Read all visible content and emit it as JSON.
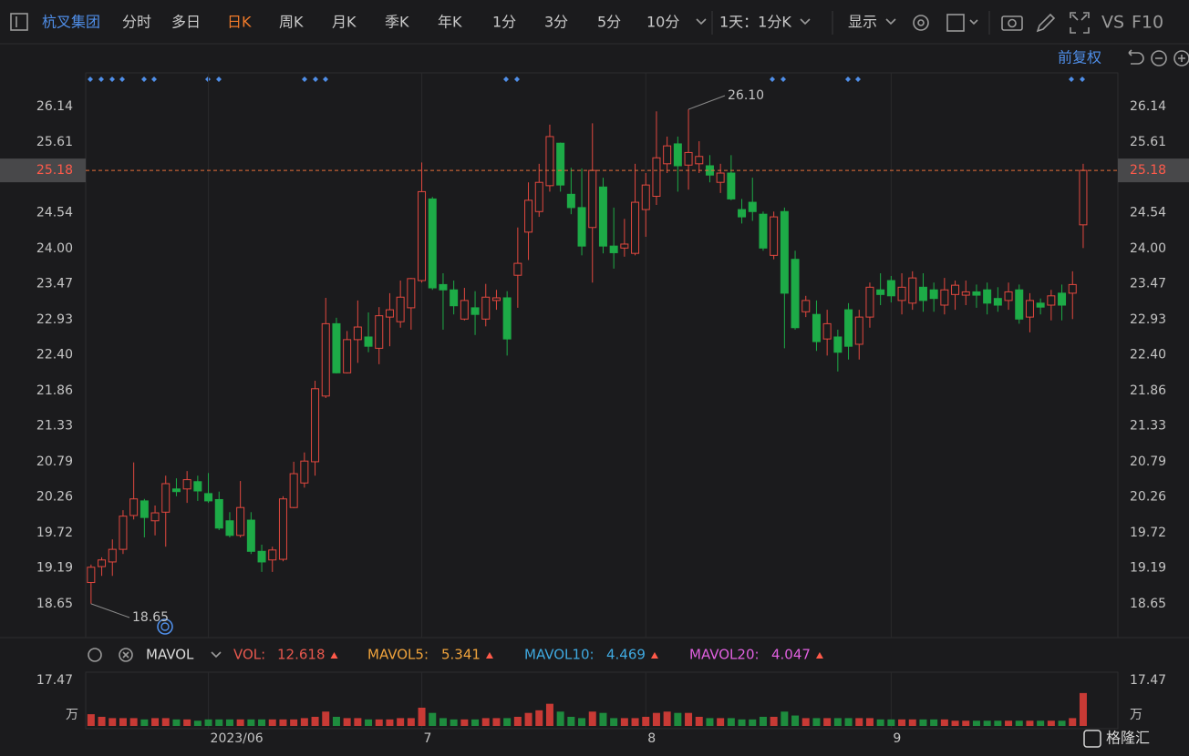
{
  "toolbar": {
    "stock_name": "杭叉集团",
    "periods": [
      "分时",
      "多日",
      "日K",
      "周K",
      "月K",
      "季K",
      "年K",
      "1分",
      "3分",
      "5分",
      "10分"
    ],
    "interval": "1天：1分K",
    "display": "显示",
    "vs": "VS",
    "f10": "F10",
    "adjust": "前复权"
  },
  "watermark": "格隆汇",
  "chart_data": [
    {
      "type": "candlestick",
      "categories": [
        null,
        null,
        null,
        null,
        null,
        null,
        null,
        null,
        null,
        null,
        null,
        "2023/06",
        null,
        null,
        null,
        null,
        null,
        null,
        null,
        null,
        null,
        null,
        null,
        null,
        null,
        null,
        null,
        null,
        null,
        null,
        null,
        "7",
        null,
        null,
        null,
        null,
        null,
        null,
        null,
        null,
        null,
        null,
        null,
        null,
        null,
        null,
        null,
        null,
        null,
        null,
        null,
        null,
        "8",
        null,
        null,
        null,
        null,
        null,
        null,
        null,
        null,
        null,
        null,
        null,
        null,
        null,
        null,
        null,
        null,
        null,
        null,
        null,
        null,
        null,
        null,
        "9",
        null,
        null,
        null,
        null,
        null,
        null,
        null,
        null,
        null,
        null,
        null,
        null,
        null,
        null,
        null,
        null,
        null,
        null
      ],
      "open": [
        18.97,
        19.21,
        19.28,
        19.47,
        19.98,
        20.2,
        19.9,
        20.03,
        20.38,
        20.38,
        20.49,
        20.31,
        20.22,
        19.9,
        19.68,
        19.91,
        19.44,
        19.31,
        19.32,
        20.1,
        20.47,
        20.79,
        21.78,
        22.87,
        22.13,
        22.63,
        22.67,
        22.5,
        22.97,
        22.9,
        23.11,
        23.52,
        24.75,
        23.46,
        23.38,
        22.94,
        23.11,
        22.94,
        23.22,
        23.26,
        23.6,
        24.25,
        24.56,
        24.95,
        25.59,
        24.82,
        24.62,
        24.32,
        24.93,
        24.04,
        24.01,
        23.93,
        24.59,
        24.79,
        25.28,
        25.58,
        25.26,
        25.28,
        25.25,
        25.0,
        25.14,
        24.59,
        24.7,
        24.52,
        23.9,
        24.56,
        23.84,
        23.05,
        23.01,
        22.64,
        22.67,
        23.08,
        22.56,
        22.97,
        23.38,
        23.52,
        23.22,
        23.18,
        23.42,
        23.38,
        23.15,
        23.31,
        23.3,
        23.35,
        23.38,
        23.25,
        23.22,
        23.38,
        22.97,
        23.18,
        23.15,
        23.33,
        23.33,
        24.36
      ],
      "high": [
        19.24,
        19.35,
        19.62,
        20.06,
        20.78,
        20.23,
        20.13,
        20.58,
        20.54,
        20.65,
        20.58,
        20.62,
        20.34,
        20.03,
        20.5,
        20.03,
        19.54,
        19.51,
        20.27,
        20.79,
        20.93,
        22.01,
        23.26,
        22.96,
        22.76,
        23.22,
        23.04,
        23.12,
        23.33,
        23.52,
        23.56,
        25.3,
        24.78,
        23.63,
        23.52,
        23.41,
        23.36,
        23.47,
        23.38,
        23.36,
        24.32,
        25.0,
        25.28,
        25.87,
        25.6,
        25.22,
        25.21,
        25.89,
        25.07,
        24.62,
        24.45,
        25.28,
        25.14,
        26.07,
        25.69,
        25.69,
        26.1,
        25.62,
        25.41,
        25.28,
        25.41,
        24.75,
        25.07,
        24.56,
        24.56,
        24.62,
        23.97,
        23.29,
        23.22,
        23.08,
        22.78,
        23.18,
        23.08,
        23.49,
        23.63,
        23.59,
        23.63,
        23.66,
        23.63,
        23.49,
        23.56,
        23.52,
        23.52,
        23.46,
        23.49,
        23.42,
        23.49,
        23.46,
        23.33,
        23.25,
        23.38,
        23.46,
        23.66,
        25.28
      ],
      "low": [
        18.65,
        19.07,
        19.07,
        19.4,
        19.92,
        19.65,
        19.68,
        19.51,
        20.27,
        20.17,
        20.2,
        20.17,
        19.76,
        19.65,
        19.65,
        19.4,
        19.13,
        19.13,
        19.29,
        20.09,
        20.4,
        20.58,
        21.75,
        22.12,
        22.12,
        22.28,
        22.44,
        22.26,
        22.53,
        22.81,
        22.78,
        23.49,
        23.38,
        22.78,
        23.01,
        22.92,
        22.7,
        22.83,
        23.08,
        22.39,
        23.11,
        23.83,
        24.48,
        24.86,
        24.86,
        24.52,
        23.9,
        23.49,
        23.93,
        23.7,
        23.88,
        23.9,
        24.18,
        24.66,
        25.14,
        24.86,
        24.89,
        25.14,
        25.0,
        24.84,
        24.73,
        24.38,
        24.42,
        23.97,
        23.84,
        22.5,
        22.78,
        22.97,
        22.46,
        22.39,
        22.15,
        22.33,
        22.33,
        22.81,
        23.15,
        23.19,
        23.01,
        23.08,
        23.05,
        23.05,
        23.01,
        23.08,
        23.15,
        23.11,
        23.01,
        23.05,
        23.08,
        22.87,
        22.74,
        23.01,
        22.92,
        22.92,
        22.94,
        24.01
      ],
      "close": [
        19.2,
        19.31,
        19.47,
        19.97,
        20.23,
        19.95,
        20.02,
        20.46,
        20.34,
        20.52,
        20.35,
        20.2,
        19.79,
        19.68,
        20.1,
        19.44,
        19.28,
        19.46,
        20.23,
        20.61,
        20.8,
        21.89,
        22.87,
        22.13,
        22.63,
        22.82,
        22.53,
        22.99,
        23.08,
        23.27,
        23.55,
        24.86,
        23.41,
        23.38,
        23.14,
        23.22,
        23.01,
        23.27,
        23.26,
        22.64,
        23.78,
        24.73,
        25.0,
        25.69,
        24.96,
        24.62,
        24.04,
        25.18,
        24.04,
        23.94,
        24.07,
        24.7,
        24.96,
        25.37,
        25.55,
        25.25,
        25.45,
        25.39,
        25.11,
        25.14,
        24.75,
        24.48,
        24.56,
        24.01,
        24.48,
        23.33,
        22.81,
        23.22,
        22.6,
        22.87,
        22.44,
        22.53,
        22.97,
        23.42,
        23.31,
        23.29,
        23.42,
        23.56,
        23.22,
        23.25,
        23.38,
        23.45,
        23.35,
        23.3,
        23.18,
        23.15,
        23.35,
        22.94,
        23.22,
        23.12,
        23.29,
        23.15,
        23.46,
        25.18
      ],
      "up_color": "#e2483f",
      "down_color": "#1dab47",
      "ylim": [
        18.14,
        26.65
      ],
      "yticks": [
        26.14,
        25.61,
        24.54,
        {
          "value": 24,
          "label": "24.00"
        },
        23.47,
        22.93,
        {
          "value": 22.4,
          "label": "22.40"
        },
        21.86,
        21.33,
        20.79,
        20.26,
        19.72,
        19.19,
        18.65
      ],
      "last_price": 25.18,
      "last_price_color": "#e8703a",
      "high_label": {
        "value": 26.1,
        "label": "26.10"
      },
      "low_label": 18.65
    },
    {
      "type": "bar",
      "indicator": "MAVOL",
      "unit": "万",
      "values": [
        4.5,
        3.5,
        3,
        3,
        3,
        2.5,
        3,
        3,
        2.5,
        2.5,
        2,
        2.5,
        2.5,
        2.5,
        2.5,
        2.5,
        2.5,
        2.5,
        2.5,
        2.5,
        3,
        3.5,
        5.5,
        3.5,
        3,
        3,
        2.5,
        2.5,
        2.5,
        3,
        3,
        7,
        5,
        3,
        2.5,
        2.5,
        2.5,
        3,
        3,
        3,
        3.5,
        5,
        6,
        8.5,
        5.5,
        3.5,
        3,
        5.5,
        5,
        3,
        3,
        3,
        3.5,
        5,
        5.5,
        5,
        5,
        3.5,
        3,
        3,
        3,
        2.5,
        2.5,
        3.5,
        3.5,
        5.5,
        4,
        3,
        3,
        3,
        3,
        3,
        3,
        3,
        2.5,
        2.5,
        2.5,
        2.5,
        2.5,
        2.5,
        2.5,
        2,
        2,
        2,
        2,
        2,
        2,
        2,
        2,
        2,
        2,
        2,
        3,
        12.618
      ],
      "up_color": "#c83a35",
      "down_color": "#1e8c3e",
      "ylim": [
        0,
        17.47
      ],
      "yticks": [
        17.47
      ],
      "legend": [
        {
          "name": "VOL:",
          "value": 12.618,
          "color": "#e8584e"
        },
        {
          "name": "MAVOL5:",
          "value": 5.341,
          "color": "#f0a33c"
        },
        {
          "name": "MAVOL10:",
          "value": 4.469,
          "color": "#3fa9e0"
        },
        {
          "name": "MAVOL20:",
          "value": 4.047,
          "color": "#e060e0"
        }
      ]
    }
  ]
}
